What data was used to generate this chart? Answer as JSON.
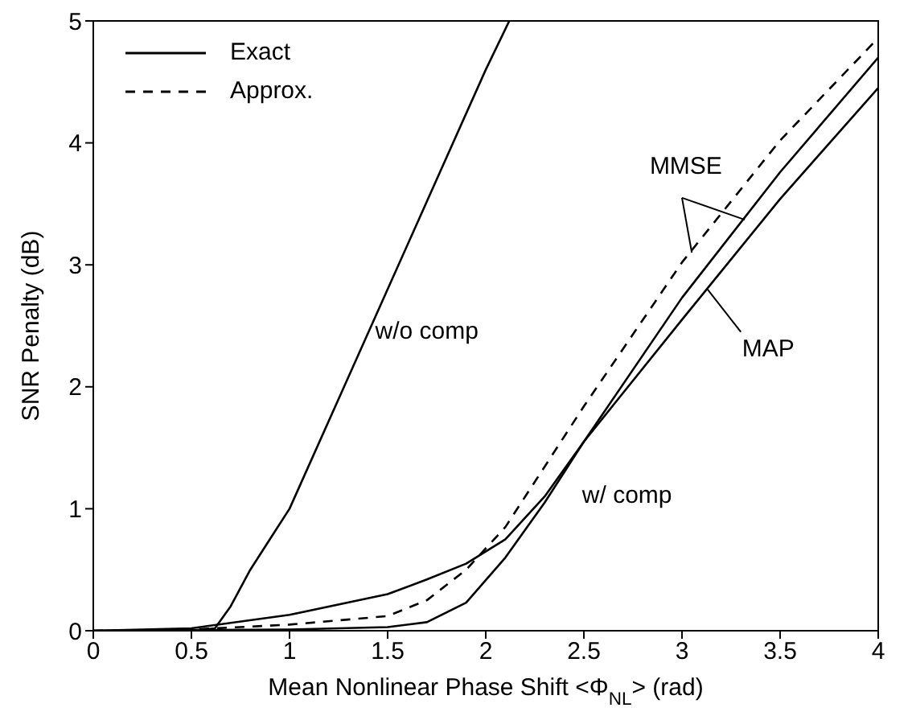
{
  "chart_data": {
    "type": "line",
    "xlabel": "Mean Nonlinear Phase Shift <Φ$_{NL}$> (rad)",
    "ylabel": "SNR Penalty (dB)",
    "xlim": [
      0,
      4
    ],
    "xticks": [
      0,
      0.5,
      1,
      1.5,
      2,
      2.5,
      3,
      3.5,
      4
    ],
    "ylim": [
      0,
      5
    ],
    "yticks": [
      0,
      1,
      2,
      3,
      4,
      5
    ],
    "legend": "top left",
    "marker": "none",
    "series": [
      {
        "color": "#000000",
        "line_style": "solid",
        "x": [
          0,
          0.5,
          0.62,
          0.7,
          0.8,
          0.9,
          1.0,
          1.25,
          1.5,
          1.75,
          2.0,
          2.12
        ],
        "values": [
          0,
          0,
          0.02,
          0.2,
          0.5,
          0.75,
          1.0,
          1.9,
          2.8,
          3.7,
          4.6,
          5.0
        ]
      },
      {
        "name": "Exact",
        "color": "#000000",
        "line_style": "solid",
        "x": [
          0,
          0.5,
          1.0,
          1.5,
          1.7,
          1.9,
          2.1,
          2.3,
          2.5,
          3.0,
          3.5,
          4.0
        ],
        "values": [
          0,
          0.02,
          0.13,
          0.3,
          0.42,
          0.55,
          0.75,
          1.1,
          1.55,
          2.73,
          3.76,
          4.7
        ]
      },
      {
        "color": "#000000",
        "line_style": "solid",
        "x": [
          0,
          1.0,
          1.5,
          1.7,
          1.9,
          2.1,
          2.3,
          2.5,
          3.0,
          3.5,
          4.0
        ],
        "values": [
          0,
          0.01,
          0.03,
          0.07,
          0.23,
          0.6,
          1.05,
          1.55,
          2.55,
          3.54,
          4.45
        ]
      },
      {
        "name": "Approx.",
        "color": "#000000",
        "line_style": "dashed",
        "x": [
          0,
          0.5,
          1.0,
          1.5,
          1.7,
          1.9,
          2.1,
          2.5,
          3.0,
          3.5,
          4.0
        ],
        "values": [
          0,
          0.01,
          0.05,
          0.12,
          0.25,
          0.5,
          0.85,
          1.84,
          3.02,
          4.02,
          4.86
        ]
      }
    ],
    "annotations": [
      "w/o comp",
      {
        "text": "MMSE",
        "x": 3.05,
        "y": 3.1
      },
      {
        "text": "MAP",
        "x": 3.13,
        "y": 2.8
      },
      "w/ comp"
    ]
  }
}
